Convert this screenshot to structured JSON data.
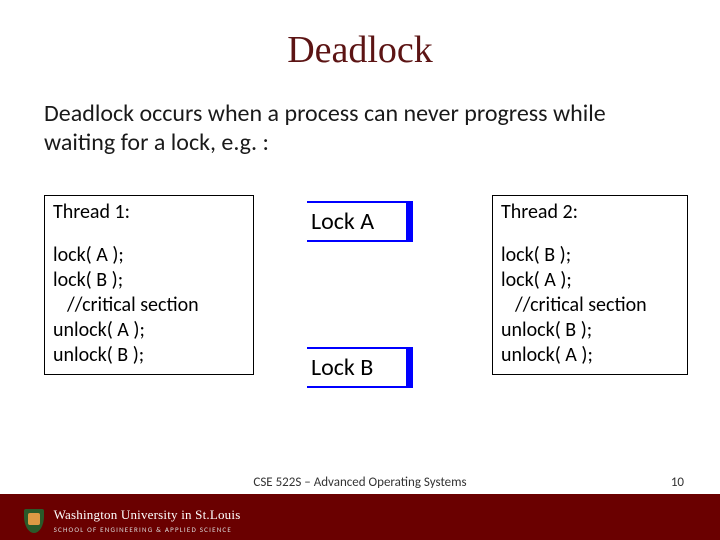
{
  "title": "Deadlock",
  "intro": "Deadlock occurs when a process can never progress while waiting for a lock, e.g. :",
  "thread1": {
    "header": "Thread 1:",
    "lines": [
      "lock( A );",
      "lock( B );",
      "  //critical section",
      "unlock( A );",
      "unlock( B );"
    ]
  },
  "thread2": {
    "header": "Thread 2:",
    "lines": [
      "lock( B );",
      "lock( A );",
      "  //critical section",
      "unlock( B );",
      "unlock( A );"
    ]
  },
  "locks": {
    "a": "Lock A",
    "b": "Lock B"
  },
  "footer": {
    "uni_top": "Washington University in St.Louis",
    "uni_bot": "SCHOOL OF ENGINEERING & APPLIED SCIENCE",
    "course": "CSE 522S – Advanced Operating Systems",
    "page": "10"
  },
  "colors": {
    "title": "#5c1414",
    "lock_bg": "#0000ff",
    "footer_bg": "#6a0000"
  }
}
